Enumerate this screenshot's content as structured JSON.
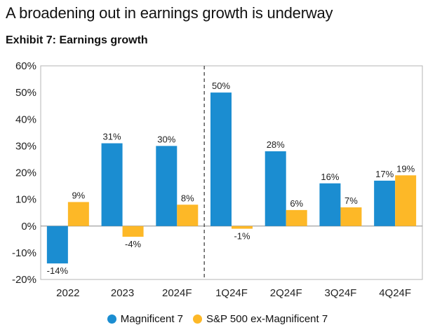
{
  "header": {
    "title": "A broadening out in earnings growth is underway",
    "subtitle": "Exhibit 7: Earnings growth"
  },
  "chart_data": {
    "type": "bar",
    "categories": [
      "2022",
      "2023",
      "2024F",
      "1Q24F",
      "2Q24F",
      "3Q24F",
      "4Q24F"
    ],
    "series": [
      {
        "name": "Magnificent 7",
        "color": "#1B8DD1",
        "values": [
          -14,
          31,
          30,
          50,
          28,
          16,
          17
        ],
        "labels": [
          "-14%",
          "31%",
          "30%",
          "50%",
          "28%",
          "16%",
          "17%"
        ]
      },
      {
        "name": "S&P 500 ex-Magnificent 7",
        "color": "#FDB827",
        "values": [
          9,
          -4,
          8,
          -1,
          6,
          7,
          19
        ],
        "labels": [
          "9%",
          "-4%",
          "8%",
          "-1%",
          "6%",
          "7%",
          "19%"
        ]
      }
    ],
    "ylim": [
      -20,
      60
    ],
    "yticks": [
      -20,
      -10,
      0,
      10,
      20,
      30,
      40,
      50,
      60
    ],
    "ytick_labels": [
      "-20%",
      "-10%",
      "0%",
      "10%",
      "20%",
      "30%",
      "40%",
      "50%",
      "60%"
    ],
    "grid": false,
    "divider_after_category": "2024F",
    "legend_position": "bottom-center"
  }
}
